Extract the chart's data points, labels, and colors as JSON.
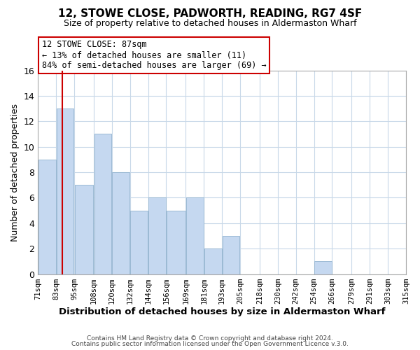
{
  "title": "12, STOWE CLOSE, PADWORTH, READING, RG7 4SF",
  "subtitle": "Size of property relative to detached houses in Aldermaston Wharf",
  "xlabel": "Distribution of detached houses by size in Aldermaston Wharf",
  "ylabel": "Number of detached properties",
  "bin_edges": [
    71,
    83,
    95,
    108,
    120,
    132,
    144,
    156,
    169,
    181,
    193,
    205,
    218,
    230,
    242,
    254,
    266,
    279,
    291,
    303,
    315
  ],
  "bin_labels": [
    "71sqm",
    "83sqm",
    "95sqm",
    "108sqm",
    "120sqm",
    "132sqm",
    "144sqm",
    "156sqm",
    "169sqm",
    "181sqm",
    "193sqm",
    "205sqm",
    "218sqm",
    "230sqm",
    "242sqm",
    "254sqm",
    "266sqm",
    "279sqm",
    "291sqm",
    "303sqm",
    "315sqm"
  ],
  "counts": [
    9,
    13,
    7,
    11,
    8,
    5,
    6,
    5,
    6,
    2,
    3,
    0,
    0,
    0,
    0,
    1,
    0,
    0,
    0,
    0
  ],
  "bar_color": "#c5d8f0",
  "bar_edge_color": "#9bbad4",
  "vline_x": 87,
  "vline_color": "#cc0000",
  "ylim": [
    0,
    16
  ],
  "yticks": [
    0,
    2,
    4,
    6,
    8,
    10,
    12,
    14,
    16
  ],
  "annotation_line1": "12 STOWE CLOSE: 87sqm",
  "annotation_line2": "← 13% of detached houses are smaller (11)",
  "annotation_line3": "84% of semi-detached houses are larger (69) →",
  "footer1": "Contains HM Land Registry data © Crown copyright and database right 2024.",
  "footer2": "Contains public sector information licensed under the Open Government Licence v.3.0.",
  "background_color": "#ffffff",
  "grid_color": "#c8d8e8",
  "annotation_box_color": "#cc0000",
  "title_fontsize": 11,
  "subtitle_fontsize": 9
}
